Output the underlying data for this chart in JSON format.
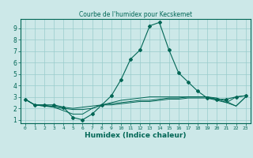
{
  "title": "Courbe de l'humidex pour Kecskemet",
  "xlabel": "Humidex (Indice chaleur)",
  "bg_color": "#cce8e8",
  "grid_color": "#99cccc",
  "line_color": "#006655",
  "xlim": [
    -0.5,
    23.5
  ],
  "ylim": [
    0.7,
    9.8
  ],
  "xticks": [
    0,
    1,
    2,
    3,
    4,
    5,
    6,
    7,
    8,
    9,
    10,
    11,
    12,
    13,
    14,
    15,
    16,
    17,
    18,
    19,
    20,
    21,
    22,
    23
  ],
  "yticks": [
    1,
    2,
    3,
    4,
    5,
    6,
    7,
    8,
    9
  ],
  "series": [
    [
      2.8,
      2.3,
      2.3,
      2.3,
      2.1,
      1.2,
      1.0,
      1.5,
      2.3,
      3.1,
      4.5,
      6.3,
      7.1,
      9.2,
      9.5,
      7.1,
      5.1,
      4.3,
      3.5,
      2.9,
      2.8,
      2.8,
      3.0,
      3.1
    ],
    [
      2.8,
      2.3,
      2.3,
      2.1,
      1.8,
      1.5,
      1.5,
      2.0,
      2.3,
      2.3,
      2.4,
      2.5,
      2.6,
      2.6,
      2.7,
      2.8,
      2.8,
      2.9,
      2.9,
      2.9,
      2.7,
      2.5,
      3.0,
      3.1
    ],
    [
      2.8,
      2.3,
      2.2,
      2.1,
      2.0,
      1.9,
      1.9,
      2.0,
      2.3,
      2.4,
      2.5,
      2.6,
      2.7,
      2.7,
      2.8,
      2.9,
      2.9,
      3.0,
      3.0,
      3.0,
      2.8,
      2.5,
      2.2,
      3.0
    ],
    [
      2.8,
      2.3,
      2.2,
      2.2,
      2.1,
      2.0,
      2.1,
      2.2,
      2.3,
      2.5,
      2.7,
      2.8,
      2.9,
      3.0,
      3.0,
      3.0,
      3.0,
      3.0,
      3.0,
      3.0,
      2.9,
      2.6,
      2.2,
      3.0
    ]
  ]
}
